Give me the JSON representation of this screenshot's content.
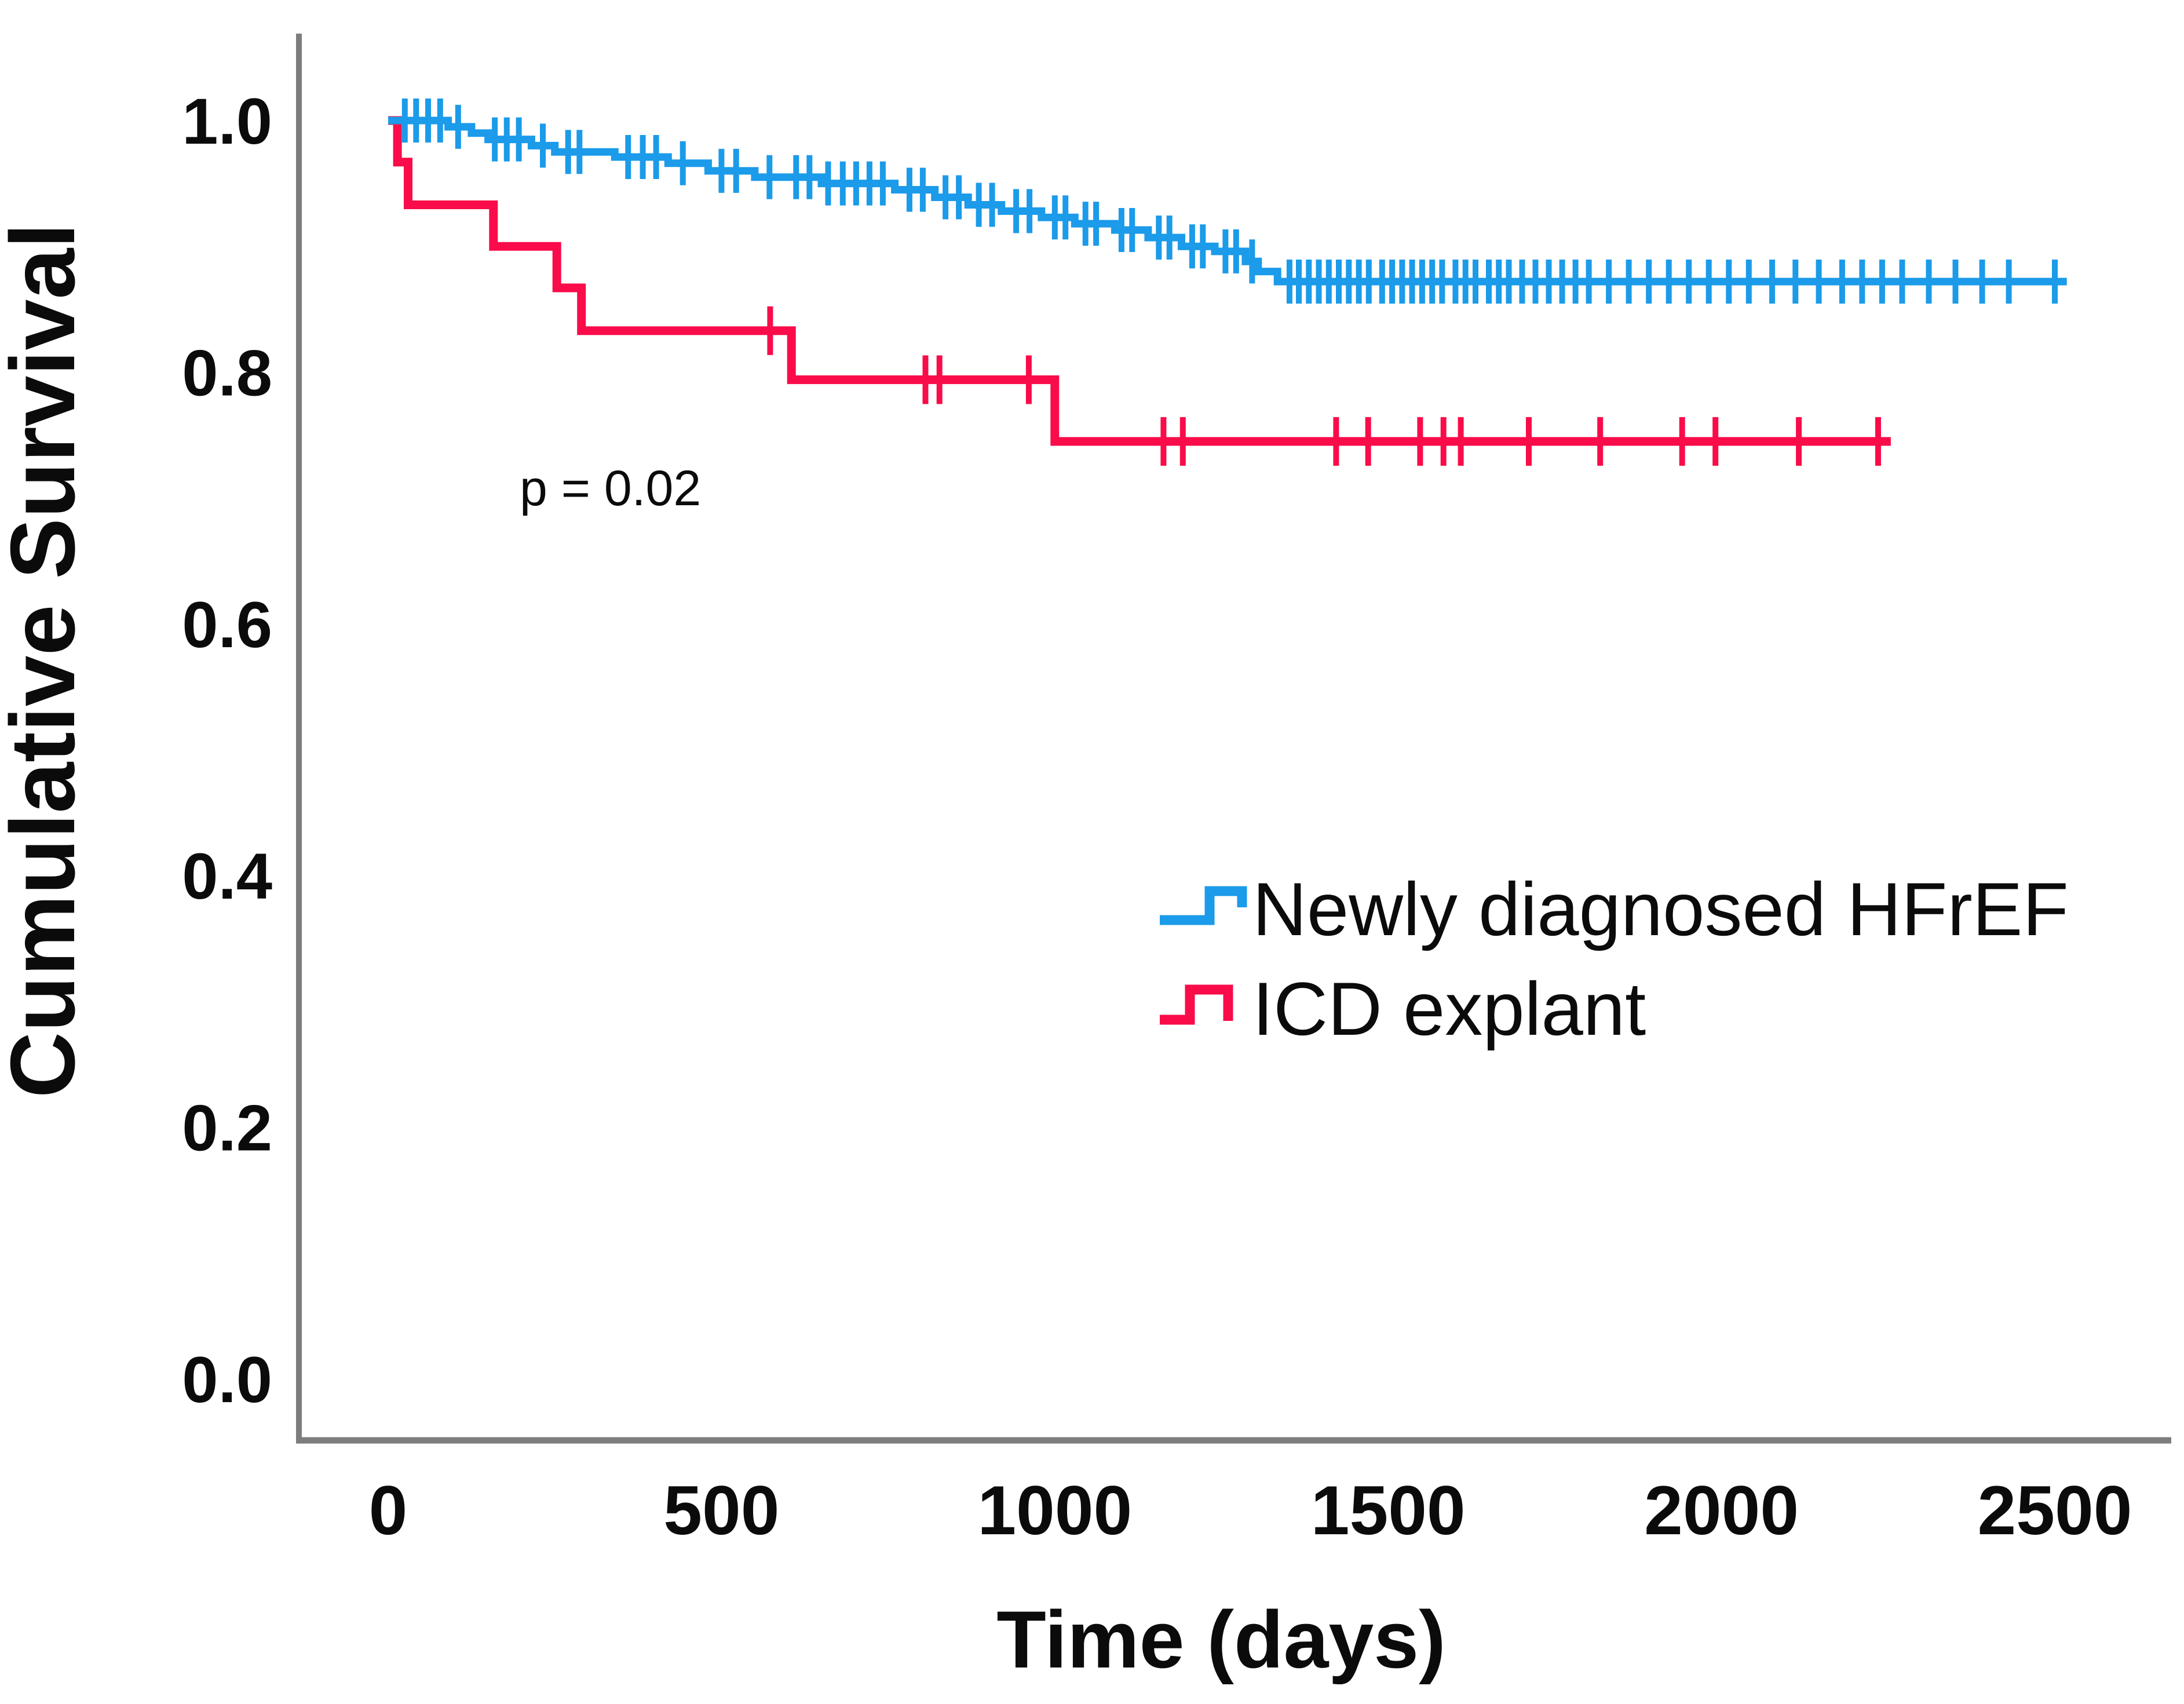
{
  "chart_data": {
    "type": "line",
    "subtype": "kaplan-meier-step-survival",
    "title": "",
    "xlabel": "Time (days)",
    "ylabel": "Cumulative Survival",
    "annotation": "p = 0.02",
    "grid": false,
    "legend_position": "center-right",
    "xlim": [
      0,
      2500
    ],
    "ylim": [
      0.0,
      1.0
    ],
    "x_ticks": [
      {
        "label": "0",
        "value": 0
      },
      {
        "label": "500",
        "value": 500
      },
      {
        "label": "1000",
        "value": 1000
      },
      {
        "label": "1500",
        "value": 1500
      },
      {
        "label": "2000",
        "value": 2000
      },
      {
        "label": "2500",
        "value": 2500
      }
    ],
    "y_ticks": [
      {
        "label": "1.0",
        "value": 1.0
      },
      {
        "label": "0.8",
        "value": 0.8
      },
      {
        "label": "0.6",
        "value": 0.6
      },
      {
        "label": "0.4",
        "value": 0.4
      },
      {
        "label": "0.2",
        "value": 0.2
      },
      {
        "label": "0.0",
        "value": 0.0
      }
    ],
    "series": [
      {
        "name": "ICD explant",
        "color": "#F90C49",
        "line_width": 15,
        "end_day": 2254,
        "steps": [
          [
            0,
            1.0
          ],
          [
            14,
            0.967
          ],
          [
            30,
            0.933
          ],
          [
            158,
            0.9
          ],
          [
            253,
            0.867
          ],
          [
            290,
            0.833
          ],
          [
            605,
            0.794
          ],
          [
            1000,
            0.745
          ]
        ],
        "censor_days": [
          573,
          806,
          827,
          961,
          1163,
          1192,
          1422,
          1470,
          1548,
          1583,
          1609,
          1711,
          1818,
          1941,
          1991,
          2116,
          2235
        ]
      },
      {
        "name": "Newly diagnosed HFrEF",
        "color": "#1B9BE9",
        "line_width": 13,
        "end_day": 2518,
        "steps": [
          [
            0,
            1.0
          ],
          [
            90,
            0.995
          ],
          [
            125,
            0.99
          ],
          [
            150,
            0.985
          ],
          [
            215,
            0.98
          ],
          [
            250,
            0.975
          ],
          [
            340,
            0.971
          ],
          [
            420,
            0.966
          ],
          [
            480,
            0.96
          ],
          [
            550,
            0.955
          ],
          [
            650,
            0.95
          ],
          [
            760,
            0.945
          ],
          [
            820,
            0.939
          ],
          [
            870,
            0.933
          ],
          [
            920,
            0.928
          ],
          [
            980,
            0.923
          ],
          [
            1030,
            0.918
          ],
          [
            1090,
            0.913
          ],
          [
            1140,
            0.907
          ],
          [
            1190,
            0.9
          ],
          [
            1240,
            0.896
          ],
          [
            1286,
            0.888
          ],
          [
            1305,
            0.88
          ],
          [
            1334,
            0.872
          ]
        ],
        "censor_days": [
          25,
          42,
          60,
          78,
          105,
          160,
          178,
          196,
          232,
          270,
          287,
          360,
          382,
          402,
          442,
          500,
          522,
          572,
          612,
          632,
          660,
          682,
          702,
          722,
          742,
          782,
          802,
          836,
          856,
          886,
          906,
          942,
          962,
          1000,
          1016,
          1046,
          1062,
          1100,
          1116,
          1156,
          1172,
          1206,
          1222,
          1256,
          1272,
          1296,
          1352,
          1366,
          1381,
          1396,
          1411,
          1426,
          1441,
          1456,
          1471,
          1491,
          1506,
          1521,
          1536,
          1551,
          1566,
          1581,
          1601,
          1616,
          1631,
          1651,
          1666,
          1681,
          1701,
          1721,
          1741,
          1761,
          1781,
          1801,
          1831,
          1861,
          1891,
          1921,
          1951,
          1981,
          2011,
          2041,
          2076,
          2111,
          2146,
          2181,
          2211,
          2241,
          2271,
          2311,
          2351,
          2391,
          2431,
          2500
        ]
      }
    ],
    "legend": [
      {
        "label": "Newly diagnosed HFrEF",
        "color": "#1B9BE9"
      },
      {
        "label": "ICD explant",
        "color": "#F90C49"
      }
    ]
  },
  "colors": {
    "axis_line": "#7d7d7d",
    "text": "#0b0b0b",
    "background": "#ffffff",
    "hfref_blue": "#1B9BE9",
    "icd_red": "#F90C49"
  }
}
